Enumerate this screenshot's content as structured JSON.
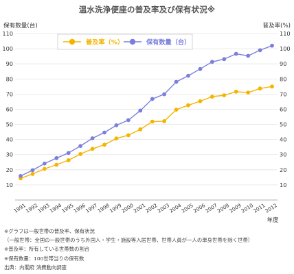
{
  "title": "温水洗浄便座の普及率及び保有状況※",
  "chart_data": {
    "type": "line",
    "y_left_label": "保有数量(台)",
    "y_right_label": "普及率(%)",
    "x_label": "年度",
    "ylim": [
      0,
      110
    ],
    "yticks": [
      10,
      20,
      30,
      40,
      50,
      60,
      70,
      80,
      90,
      100,
      110
    ],
    "categories": [
      "1991",
      "1992",
      "1993",
      "1994",
      "1995",
      "1996",
      "1997",
      "1998",
      "1999",
      "2000",
      "2001",
      "2002",
      "2003",
      "2004",
      "2005",
      "2006",
      "2007",
      "2008",
      "2009",
      "2010",
      "2011",
      "2012"
    ],
    "series": [
      {
        "name": "普及率（%）",
        "color": "#f4b400",
        "values": [
          14.3,
          17.2,
          20.6,
          23.3,
          26.3,
          30.4,
          33.8,
          36.5,
          40.7,
          42.8,
          46.7,
          51.8,
          52.1,
          59.7,
          62.6,
          65.3,
          68.3,
          69.2,
          71.6,
          71.0,
          73.7,
          75.0
        ]
      },
      {
        "name": "保有数量（台）",
        "color": "#7b7fdc",
        "values": [
          15.9,
          19.7,
          24.1,
          27.7,
          31.1,
          35.7,
          40.8,
          44.6,
          49.4,
          52.8,
          59.1,
          66.8,
          69.9,
          78.1,
          82.1,
          86.6,
          91.3,
          93.1,
          96.6,
          95.3,
          99.0,
          102.0
        ]
      }
    ],
    "grid": true,
    "legend_position": "top"
  },
  "notes": [
    "※グラフは一般世帯の普及率、保有状況",
    "（一般世帯：全国の一般世帯のうち外国人・学生・施設等入居世帯、世帯人員が一人の単身世帯を除く世帯）",
    "※普及率：所有している世帯数の割合",
    "※保有数量：100世帯当りの保有数",
    "出典：内閣府 消費動向調査"
  ]
}
